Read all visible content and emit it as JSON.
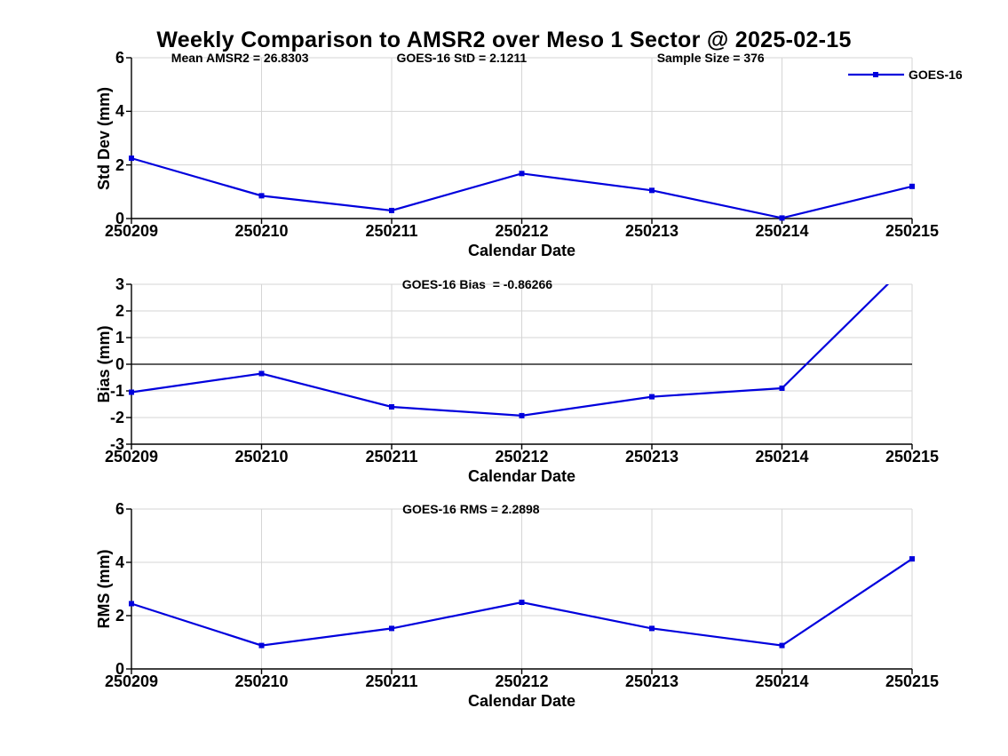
{
  "page_title": "Weekly Comparison to AMSR2 over Meso 1 Sector @ 2025-02-15",
  "legend": {
    "label": "GOES-16",
    "position": "top-right"
  },
  "colors": {
    "line": "#0000dd",
    "grid": "#d5d5d5",
    "axis": "#000000",
    "zero_line": "#000000",
    "background": "#ffffff",
    "text": "#000000"
  },
  "chart_data": [
    {
      "type": "line",
      "id": "std-dev",
      "ylabel": "Std Dev (mm)",
      "xlabel": "Calendar Date",
      "ylim": [
        0,
        6
      ],
      "yticks": [
        0,
        2,
        4,
        6
      ],
      "grid": true,
      "zero_line": false,
      "legend_visible": true,
      "categories": [
        "250209",
        "250210",
        "250211",
        "250212",
        "250213",
        "250214",
        "250215"
      ],
      "series": [
        {
          "name": "GOES-16",
          "marker": "square",
          "values": [
            2.25,
            0.85,
            0.3,
            1.68,
            1.05,
            0.02,
            1.2
          ]
        }
      ],
      "annotations": [
        {
          "text": "Mean AMSR2 = 26.8303",
          "fx": 0.139
        },
        {
          "text": "GOES-16 StD = 2.1211",
          "fx": 0.423
        },
        {
          "text": "Sample Size = 376",
          "fx": 0.742
        }
      ]
    },
    {
      "type": "line",
      "id": "bias",
      "ylabel": "Bias (mm)",
      "xlabel": "Calendar Date",
      "ylim": [
        -3,
        3
      ],
      "yticks": [
        -3,
        -2,
        -1,
        0,
        1,
        2,
        3
      ],
      "grid": true,
      "zero_line": true,
      "legend_visible": false,
      "categories": [
        "250209",
        "250210",
        "250211",
        "250212",
        "250213",
        "250214",
        "250215"
      ],
      "series": [
        {
          "name": "GOES-16",
          "marker": "square",
          "values": [
            -1.05,
            -0.35,
            -1.6,
            -1.93,
            -1.22,
            -0.9,
            3.9
          ]
        }
      ],
      "annotations": [
        {
          "text": "GOES-16 Bias  = -0.86266",
          "fx": 0.443
        }
      ]
    },
    {
      "type": "line",
      "id": "rms",
      "ylabel": "RMS (mm)",
      "xlabel": "Calendar Date",
      "ylim": [
        0,
        6
      ],
      "yticks": [
        0,
        2,
        4,
        6
      ],
      "grid": true,
      "zero_line": false,
      "legend_visible": false,
      "categories": [
        "250209",
        "250210",
        "250211",
        "250212",
        "250213",
        "250214",
        "250215"
      ],
      "series": [
        {
          "name": "GOES-16",
          "marker": "square",
          "values": [
            2.45,
            0.88,
            1.52,
            2.5,
            1.52,
            0.88,
            4.13
          ]
        }
      ],
      "annotations": [
        {
          "text": "GOES-16 RMS = 2.2898",
          "fx": 0.435
        }
      ]
    }
  ]
}
